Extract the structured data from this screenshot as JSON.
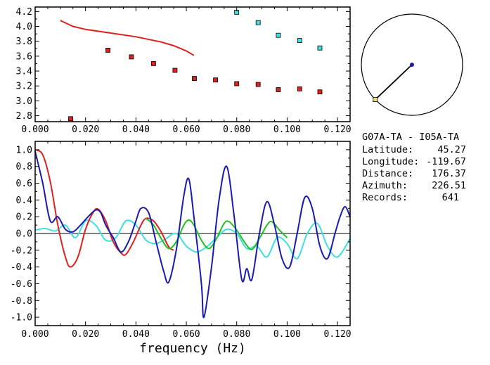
{
  "station_info": {
    "pair": "G07A-TA - I05A-TA",
    "rows": [
      {
        "label": "Latitude:",
        "value": "45.27"
      },
      {
        "label": "Longitude:",
        "value": "-119.67"
      },
      {
        "label": "Distance:",
        "value": "176.37"
      },
      {
        "label": "Azimuth:",
        "value": "226.51"
      },
      {
        "label": "Records:",
        "value": "641"
      }
    ]
  },
  "azimuth_plot": {
    "azimuth_deg": 226.51,
    "line_color": "#000000",
    "center_color": "#1a1ab0",
    "end_color": "#f0e060"
  },
  "chart_data": [
    {
      "type": "scatter",
      "xlim": [
        0.0,
        0.125
      ],
      "ylim": [
        2.72,
        4.26
      ],
      "xticks": [
        "0.000",
        "0.020",
        "0.040",
        "0.060",
        "0.080",
        "0.100",
        "0.120"
      ],
      "yticks": [
        "2.8",
        "3.0",
        "3.2",
        "3.4",
        "3.6",
        "3.8",
        "4.0",
        "4.2"
      ],
      "series": [
        {
          "kind": "points",
          "color": "#e02020",
          "x": [
            0.0141,
            0.0289,
            0.0382,
            0.047,
            0.0555,
            0.0632,
            0.0716,
            0.08,
            0.0885,
            0.0965,
            0.105,
            0.113
          ],
          "y": [
            2.76,
            3.68,
            3.59,
            3.5,
            3.41,
            3.3,
            3.28,
            3.23,
            3.22,
            3.15,
            3.16,
            3.12
          ]
        },
        {
          "kind": "points",
          "color": "#40e0e0",
          "x": [
            0.08,
            0.0885,
            0.0965,
            0.105,
            0.113
          ],
          "y": [
            4.19,
            4.05,
            3.88,
            3.81,
            3.71
          ]
        },
        {
          "kind": "line",
          "color": "#e02020",
          "x": [
            0.01,
            0.015,
            0.02,
            0.03,
            0.04,
            0.05,
            0.055,
            0.06,
            0.063
          ],
          "y": [
            4.08,
            4.0,
            3.96,
            3.91,
            3.86,
            3.79,
            3.74,
            3.67,
            3.61
          ]
        }
      ]
    },
    {
      "type": "line",
      "xlabel": "frequency (Hz)",
      "xlim": [
        0.0,
        0.125
      ],
      "ylim": [
        -1.1,
        1.1
      ],
      "xticks": [
        "0.000",
        "0.020",
        "0.040",
        "0.060",
        "0.080",
        "0.100",
        "0.120"
      ],
      "yticks": [
        "1.0",
        "0.8",
        "0.6",
        "0.4",
        "0.2",
        "0.0",
        "-0.2",
        "-0.4",
        "-0.6",
        "-0.8",
        "-1.0"
      ],
      "zero_line": true,
      "series": [
        {
          "color": "#e02020",
          "x": [
            0.0,
            0.003,
            0.006,
            0.009,
            0.012,
            0.014,
            0.017,
            0.02,
            0.023,
            0.025,
            0.028,
            0.031,
            0.034,
            0.036,
            0.039,
            0.042,
            0.044,
            0.047,
            0.05,
            0.053,
            0.055
          ],
          "y": [
            1.0,
            0.94,
            0.62,
            0.1,
            -0.28,
            -0.4,
            -0.28,
            0.05,
            0.25,
            0.29,
            0.15,
            -0.1,
            -0.23,
            -0.25,
            -0.1,
            0.1,
            0.18,
            0.15,
            0.02,
            -0.16,
            -0.2
          ]
        },
        {
          "color": "#20c020",
          "x": [
            0.044,
            0.047,
            0.05,
            0.053,
            0.056,
            0.059,
            0.061,
            0.063,
            0.066,
            0.069,
            0.072,
            0.075,
            0.077,
            0.08,
            0.083,
            0.086,
            0.089,
            0.092,
            0.094,
            0.097,
            0.1
          ],
          "y": [
            0.18,
            0.1,
            -0.06,
            -0.18,
            -0.1,
            0.1,
            0.16,
            0.1,
            -0.08,
            -0.18,
            -0.06,
            0.12,
            0.14,
            0.04,
            -0.1,
            -0.19,
            -0.06,
            0.1,
            0.14,
            0.04,
            -0.05
          ]
        },
        {
          "color": "#1a1ab0",
          "x": [
            0.0,
            0.003,
            0.006,
            0.009,
            0.012,
            0.015,
            0.018,
            0.021,
            0.024,
            0.026,
            0.028,
            0.031,
            0.034,
            0.037,
            0.04,
            0.042,
            0.045,
            0.048,
            0.051,
            0.053,
            0.056,
            0.059,
            0.061,
            0.063,
            0.066,
            0.067,
            0.07,
            0.073,
            0.076,
            0.079,
            0.082,
            0.084,
            0.086,
            0.089,
            0.092,
            0.095,
            0.098,
            0.101,
            0.104,
            0.107,
            0.11,
            0.113,
            0.116,
            0.119,
            0.121,
            0.123,
            0.125
          ],
          "y": [
            0.98,
            0.6,
            0.15,
            0.2,
            0.05,
            0.02,
            0.1,
            0.2,
            0.28,
            0.25,
            0.1,
            -0.05,
            -0.22,
            -0.1,
            0.15,
            0.3,
            0.25,
            -0.1,
            -0.45,
            -0.58,
            -0.2,
            0.45,
            0.65,
            0.2,
            -0.6,
            -1.0,
            -0.4,
            0.4,
            0.8,
            0.2,
            -0.55,
            -0.42,
            -0.55,
            0.0,
            0.38,
            0.1,
            -0.3,
            -0.4,
            0.0,
            0.43,
            0.3,
            -0.15,
            -0.3,
            0.0,
            0.2,
            0.32,
            0.2
          ]
        },
        {
          "color": "#40e0e0",
          "x": [
            0.0,
            0.004,
            0.008,
            0.012,
            0.016,
            0.02,
            0.024,
            0.028,
            0.032,
            0.036,
            0.04,
            0.044,
            0.048,
            0.052,
            0.056,
            0.06,
            0.064,
            0.068,
            0.072,
            0.076,
            0.08,
            0.084,
            0.088,
            0.092,
            0.096,
            0.1,
            0.104,
            0.108,
            0.112,
            0.116,
            0.12,
            0.125
          ],
          "y": [
            0.04,
            0.06,
            0.03,
            0.1,
            -0.05,
            0.15,
            0.1,
            -0.08,
            -0.05,
            0.15,
            0.1,
            -0.08,
            -0.12,
            -0.06,
            0.0,
            -0.15,
            -0.22,
            -0.16,
            -0.05,
            0.05,
            0.0,
            -0.18,
            -0.15,
            -0.28,
            -0.05,
            -0.12,
            -0.3,
            0.0,
            0.12,
            -0.15,
            -0.28,
            -0.06
          ]
        }
      ]
    }
  ]
}
